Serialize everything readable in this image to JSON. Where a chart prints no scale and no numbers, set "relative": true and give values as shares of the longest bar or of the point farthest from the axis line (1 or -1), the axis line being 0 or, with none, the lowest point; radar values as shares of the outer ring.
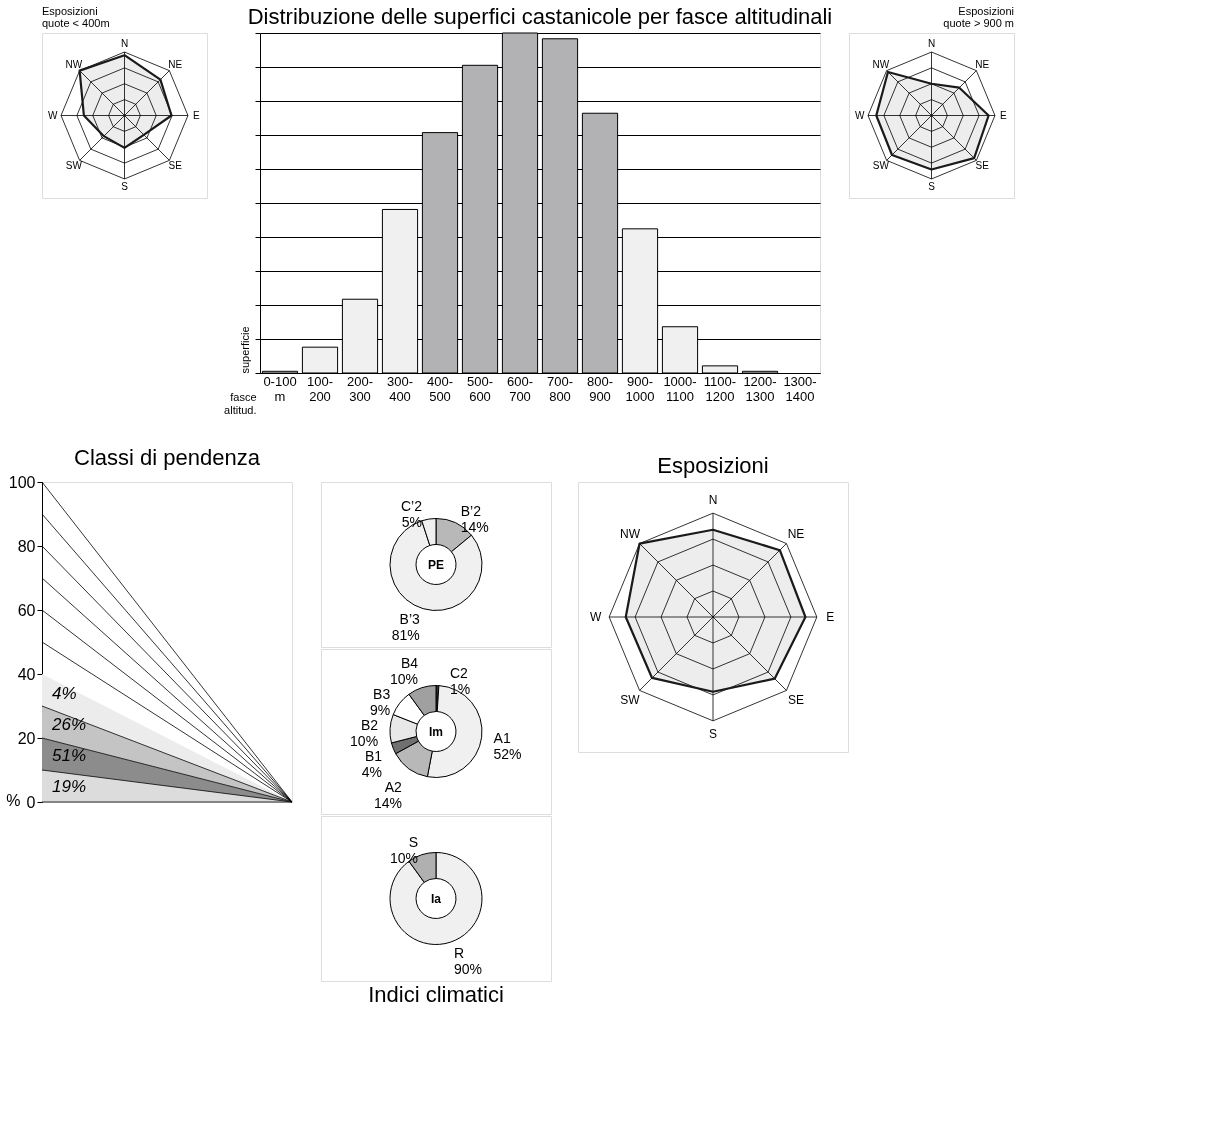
{
  "chart_data": [
    {
      "type": "radar",
      "title": "Esposizioni quote < 400m",
      "relative": true,
      "grid": true,
      "categories": [
        "N",
        "NE",
        "E",
        "SE",
        "S",
        "SW",
        "W",
        "NW"
      ],
      "series": [
        {
          "color": "#1a1a1a",
          "values": [
            0.95,
            0.8,
            0.74,
            0.43,
            0.51,
            0.46,
            0.64,
            1.0
          ]
        }
      ]
    },
    {
      "type": "bar",
      "title": "Distribuzione delle superfici castanicole per fasce altitudinali",
      "xlabel": "fasce altitud.",
      "ylabel": "superficie",
      "relative": true,
      "grid": "y",
      "categories": [
        "0-100 m",
        "100-200",
        "200-300",
        "300-400",
        "400-500",
        "500-600",
        "600-700",
        "700-800",
        "800-900",
        "900-1000",
        "1000-1100",
        "1100-1200",
        "1200-1300",
        "1300-1400"
      ],
      "values": [
        0.005,
        0.076,
        0.217,
        0.481,
        0.707,
        0.905,
        1,
        0.983,
        0.764,
        0.424,
        0.136,
        0.021,
        0.005,
        0
      ],
      "colors": [
        "#f0f0f0",
        "#f0f0f0",
        "#f0f0f0",
        "#f0f0f0",
        "#b2b2b4",
        "#b2b2b4",
        "#b2b2b4",
        "#b2b2b4",
        "#b2b2b4",
        "#f0f0f0",
        "#f0f0f0",
        "#f0f0f0",
        "#f0f0f0",
        "#f0f0f0"
      ]
    },
    {
      "type": "radar",
      "title": "Esposizioni quote > 900 m",
      "relative": true,
      "grid": true,
      "categories": [
        "N",
        "NE",
        "E",
        "SE",
        "S",
        "SW",
        "W",
        "NW"
      ],
      "series": [
        {
          "color": "#1a1a1a",
          "values": [
            0.5,
            0.62,
            0.9,
            0.95,
            0.85,
            0.88,
            0.87,
            0.97
          ]
        }
      ]
    },
    {
      "type": "area",
      "title": "Classi di pendenza",
      "ylabel": "%",
      "ylim": [
        0,
        100
      ],
      "yticks": [
        0,
        20,
        40,
        60,
        80,
        100
      ],
      "categories": [
        null,
        null
      ],
      "stacked": true,
      "series": [
        {
          "name": "19%",
          "color": "#dcdcdc",
          "values": [
            10,
            0
          ]
        },
        {
          "name": "51%",
          "color": "#8c8c8c",
          "values": [
            10,
            0
          ]
        },
        {
          "name": "26%",
          "color": "#c4c4c4",
          "values": [
            10,
            0
          ]
        },
        {
          "name": "4%",
          "color": "#ececec",
          "values": [
            10,
            0
          ]
        },
        {
          "type": "line",
          "color": "#000000",
          "values": [
            50,
            0
          ]
        },
        {
          "type": "line",
          "color": "#000000",
          "values": [
            60,
            0
          ]
        },
        {
          "type": "line",
          "color": "#000000",
          "values": [
            70,
            0
          ]
        },
        {
          "type": "line",
          "color": "#000000",
          "values": [
            80,
            0
          ]
        },
        {
          "type": "line",
          "color": "#000000",
          "values": [
            90,
            0
          ]
        },
        {
          "type": "line",
          "color": "#000000",
          "values": [
            100,
            0
          ]
        }
      ]
    },
    {
      "type": "donut",
      "title": "PE",
      "categories": [
        "B’2",
        "B’3",
        "C’2"
      ],
      "values": [
        14,
        81,
        5
      ],
      "value_labels": [
        "14%",
        "81%",
        "5%"
      ],
      "colors": [
        "#b8b8b8",
        "#f0f0f0",
        "#f0f0f0"
      ]
    },
    {
      "type": "donut",
      "title": "Im",
      "categories": [
        "C2",
        "A1",
        "A2",
        "B1",
        "B2",
        "B3",
        "B4"
      ],
      "values": [
        1,
        52,
        14,
        4,
        10,
        9,
        10
      ],
      "value_labels": [
        "1%",
        "52%",
        "14%",
        "4%",
        "10%",
        "9%",
        "10%"
      ],
      "colors": [
        "#333333",
        "#f0f0f0",
        "#b8b8b8",
        "#707070",
        "#e8e8e8",
        "#ffffff",
        "#a0a0a0"
      ]
    },
    {
      "type": "donut",
      "title": "Ia",
      "categories": [
        "R",
        "S"
      ],
      "values": [
        90,
        10
      ],
      "value_labels": [
        "90%",
        "10%"
      ],
      "colors": [
        "#f0f0f0",
        "#b0b0b0"
      ],
      "annotations": [
        "Indici climatici"
      ]
    },
    {
      "type": "radar",
      "title": "Esposizioni",
      "relative": true,
      "grid": true,
      "categories": [
        "N",
        "NE",
        "E",
        "SE",
        "S",
        "SW",
        "W",
        "NW"
      ],
      "series": [
        {
          "color": "#1a1a1a",
          "values": [
            0.84,
            0.91,
            0.89,
            0.84,
            0.72,
            0.83,
            0.84,
            1.0
          ]
        }
      ]
    }
  ]
}
